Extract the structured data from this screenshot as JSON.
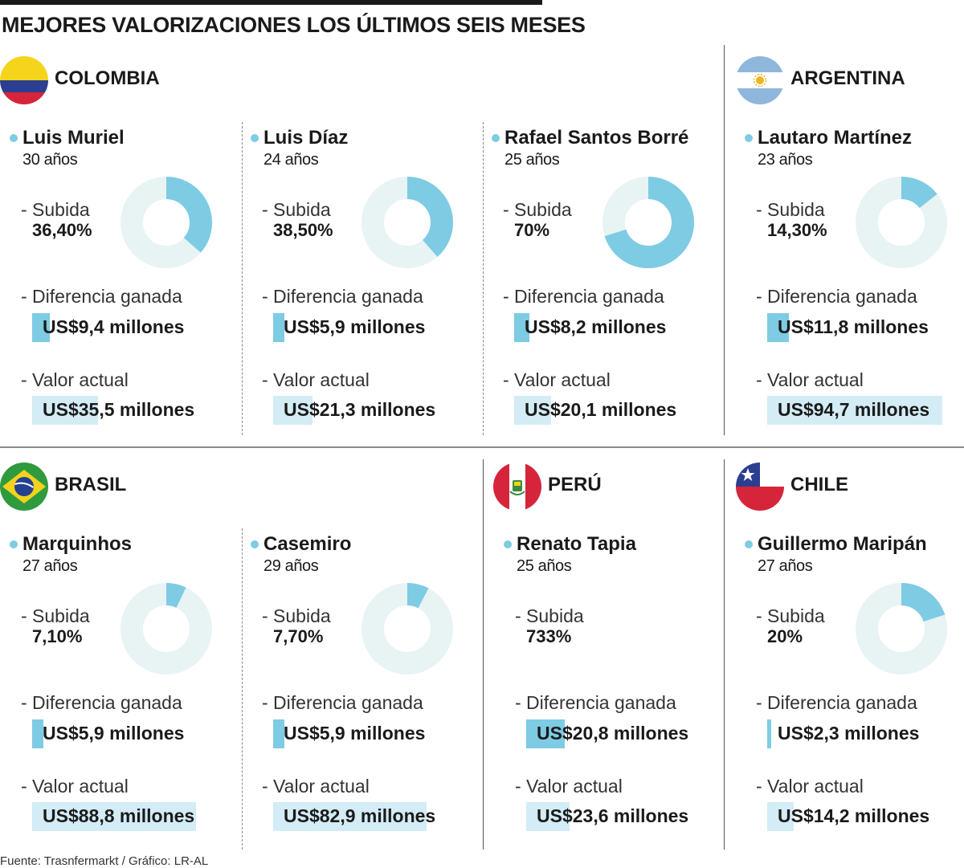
{
  "title": "MEJORES VALORIZACIONES LOS ÚLTIMOS SEIS MESES",
  "source": "Fuente: Trasnfermarkt / Gráfico: LR-AL",
  "colors": {
    "accent": "#7ecbe4",
    "accent_light": "#d3ecf6",
    "donut_track": "#e8f3f4",
    "text": "#1a1a1a"
  },
  "labels": {
    "subida": "- Subida",
    "diferencia": "- Diferencia ganada",
    "valor": "- Valor actual"
  },
  "countries": [
    {
      "name": "COLOMBIA",
      "flag": "colombia-flag-icon"
    },
    {
      "name": "ARGENTINA",
      "flag": "argentina-flag-icon"
    },
    {
      "name": "BRASIL",
      "flag": "brazil-flag-icon"
    },
    {
      "name": "PERÚ",
      "flag": "peru-flag-icon"
    },
    {
      "name": "CHILE",
      "flag": "chile-flag-icon"
    }
  ],
  "chart_data": {
    "type": "donut",
    "title": "MEJORES VALORIZACIONES LOS ÚLTIMOS SEIS MESES",
    "units": {
      "value": "US$ millones",
      "rise": "%"
    },
    "players": [
      {
        "country": "COLOMBIA",
        "name": "Luis Muriel",
        "age": "30 años",
        "rise_label": "36,40%",
        "rise": 36.4,
        "gain_label": "US$9,4 millones",
        "gain": 9.4,
        "value_label": "US$35,5 millones",
        "value": 35.5
      },
      {
        "country": "COLOMBIA",
        "name": "Luis Díaz",
        "age": "24 años",
        "rise_label": "38,50%",
        "rise": 38.5,
        "gain_label": "US$5,9 millones",
        "gain": 5.9,
        "value_label": "US$21,3 millones",
        "value": 21.3
      },
      {
        "country": "COLOMBIA",
        "name": "Rafael Santos Borré",
        "age": "25 años",
        "rise_label": "70%",
        "rise": 70,
        "gain_label": "US$8,2 millones",
        "gain": 8.2,
        "value_label": "US$20,1 millones",
        "value": 20.1
      },
      {
        "country": "ARGENTINA",
        "name": "Lautaro Martínez",
        "age": "23 años",
        "rise_label": "14,30%",
        "rise": 14.3,
        "gain_label": "US$11,8 millones",
        "gain": 11.8,
        "value_label": "US$94,7 millones",
        "value": 94.7
      },
      {
        "country": "BRASIL",
        "name": "Marquinhos",
        "age": "27 años",
        "rise_label": "7,10%",
        "rise": 7.1,
        "gain_label": "US$5,9 millones",
        "gain": 5.9,
        "value_label": "US$88,8 millones",
        "value": 88.8
      },
      {
        "country": "BRASIL",
        "name": "Casemiro",
        "age": "29 años",
        "rise_label": "7,70%",
        "rise": 7.7,
        "gain_label": "US$5,9 millones",
        "gain": 5.9,
        "value_label": "US$82,9 millones",
        "value": 82.9
      },
      {
        "country": "PERÚ",
        "name": "Renato Tapia",
        "age": "25 años",
        "rise_label": "733%",
        "rise": 733,
        "gain_label": "US$20,8 millones",
        "gain": 20.8,
        "value_label": "US$23,6 millones",
        "value": 23.6
      },
      {
        "country": "CHILE",
        "name": "Guillermo Maripán",
        "age": "27 años",
        "rise_label": "20%",
        "rise": 20,
        "gain_label": "US$2,3 millones",
        "gain": 2.3,
        "value_label": "US$14,2 millones",
        "value": 14.2
      }
    ]
  }
}
